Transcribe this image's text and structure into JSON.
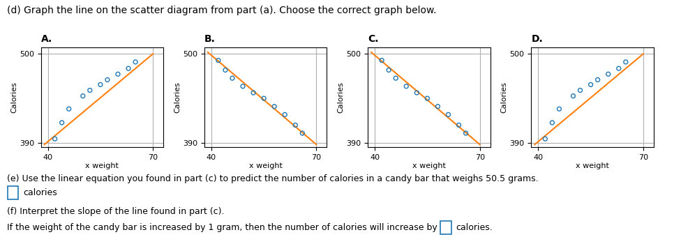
{
  "title": "(d) Graph the line on the scatter diagram from part (a). Choose the correct graph below.",
  "annotations": [
    "(e) Use the linear equation you found in part (c) to predict the number of calories in a candy bar that weighs 50.5 grams.",
    "calories",
    "(f) Interpret the slope of the line found in part (c).",
    "If the weight of the candy bar is increased by 1 gram, then the number of calories will increase by",
    "calories."
  ],
  "chart_data": [
    {
      "type": "scatter",
      "title": "A.",
      "xlabel": "x weight",
      "ylabel": "Calories",
      "xlim": [
        38,
        73
      ],
      "ylim": [
        385,
        508
      ],
      "xticks": [
        40,
        70
      ],
      "yticks": [
        390,
        500
      ],
      "grid": true,
      "series": [
        {
          "type": "scatter",
          "marker": "o",
          "x": [
            42,
            44,
            46,
            50,
            52,
            55,
            57,
            60,
            63,
            65
          ],
          "values": [
            395,
            415,
            432,
            448,
            455,
            462,
            468,
            475,
            482,
            490
          ]
        },
        {
          "type": "line",
          "line_style": "solid",
          "x": [
            39,
            70
          ],
          "values": [
            388,
            500
          ]
        }
      ]
    },
    {
      "type": "scatter",
      "title": "B.",
      "xlabel": "x weight",
      "ylabel": "Calories",
      "xlim": [
        38,
        73
      ],
      "ylim": [
        385,
        508
      ],
      "xticks": [
        40,
        70
      ],
      "yticks": [
        390,
        500
      ],
      "grid": true,
      "series": [
        {
          "type": "scatter",
          "marker": "o",
          "x": [
            42,
            44,
            46,
            49,
            52,
            55,
            58,
            61,
            64,
            66
          ],
          "values": [
            492,
            480,
            470,
            460,
            452,
            445,
            435,
            425,
            412,
            402
          ]
        },
        {
          "type": "line",
          "line_style": "solid",
          "x": [
            39,
            70
          ],
          "values": [
            502,
            388
          ]
        }
      ]
    },
    {
      "type": "scatter",
      "title": "C.",
      "xlabel": "x weight",
      "ylabel": "Calories",
      "xlim": [
        38,
        73
      ],
      "ylim": [
        385,
        508
      ],
      "xticks": [
        40,
        70
      ],
      "yticks": [
        390,
        500
      ],
      "grid": true,
      "series": [
        {
          "type": "scatter",
          "marker": "o",
          "x": [
            42,
            44,
            46,
            49,
            52,
            55,
            58,
            61,
            64,
            66
          ],
          "values": [
            492,
            480,
            470,
            460,
            452,
            445,
            435,
            425,
            412,
            402
          ]
        },
        {
          "type": "line",
          "line_style": "solid",
          "x": [
            39,
            70
          ],
          "values": [
            502,
            388
          ]
        }
      ]
    },
    {
      "type": "scatter",
      "title": "D.",
      "xlabel": "x weight",
      "ylabel": "Calories",
      "xlim": [
        38,
        73
      ],
      "ylim": [
        385,
        508
      ],
      "xticks": [
        40,
        70
      ],
      "yticks": [
        390,
        500
      ],
      "grid": true,
      "series": [
        {
          "type": "scatter",
          "marker": "o",
          "x": [
            42,
            44,
            46,
            50,
            52,
            55,
            57,
            60,
            63,
            65
          ],
          "values": [
            395,
            415,
            432,
            448,
            455,
            462,
            468,
            475,
            482,
            490
          ]
        },
        {
          "type": "line",
          "line_style": "solid",
          "x": [
            39,
            70
          ],
          "values": [
            388,
            500
          ]
        }
      ]
    }
  ]
}
